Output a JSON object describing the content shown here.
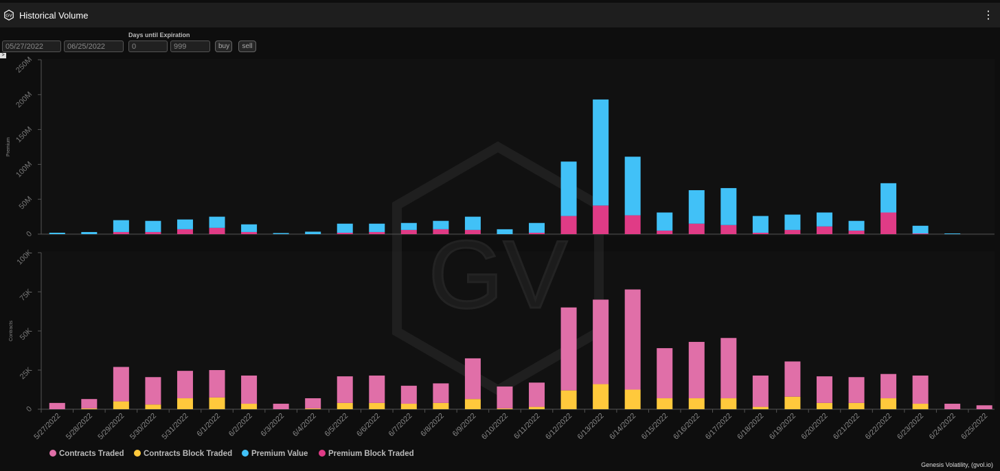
{
  "header": {
    "title": "Historical Volume",
    "logo_text": "GV",
    "menu_icon": "more-dots-icon"
  },
  "controls": {
    "start_date": "05/27/2022",
    "end_date": "06/25/2022",
    "days_label": "Days until Expiration",
    "days_min": "0",
    "days_max": "999",
    "buy_label": "buy",
    "sell_label": "sell",
    "expand_glyph": ">"
  },
  "watermark": {
    "text": "GV"
  },
  "credit": "Genesis Volatility, (gvol.io)",
  "colors": {
    "contracts_traded": "#e06fa8",
    "contracts_block": "#ffc93c",
    "premium_value": "#41c1f7",
    "premium_block": "#e03b86"
  },
  "chart_data": [
    {
      "type": "bar",
      "stacked": true,
      "ylabel": "Premium",
      "ylim": [
        0,
        250000000
      ],
      "yticks": [
        0,
        50000000,
        100000000,
        150000000,
        200000000,
        250000000
      ],
      "ytick_labels": [
        "0",
        "50M",
        "100M",
        "150M",
        "200M",
        "250M"
      ],
      "categories": [
        "5/27/2022",
        "5/28/2022",
        "5/29/2022",
        "5/30/2022",
        "5/31/2022",
        "6/1/2022",
        "6/2/2022",
        "6/3/2022",
        "6/4/2022",
        "6/5/2022",
        "6/6/2022",
        "6/7/2022",
        "6/8/2022",
        "6/9/2022",
        "6/10/2022",
        "6/11/2022",
        "6/12/2022",
        "6/13/2022",
        "6/14/2022",
        "6/15/2022",
        "6/16/2022",
        "6/17/2022",
        "6/18/2022",
        "6/19/2022",
        "6/20/2022",
        "6/21/2022",
        "6/22/2022",
        "6/23/2022",
        "6/24/2022",
        "6/25/2022"
      ],
      "series": [
        {
          "name": "Premium Block Traded",
          "color": "#e03b86",
          "values": [
            0,
            0,
            3000000,
            3000000,
            7000000,
            9000000,
            3000000,
            0,
            0,
            2000000,
            3000000,
            6000000,
            7000000,
            6000000,
            0,
            2000000,
            26000000,
            41000000,
            27000000,
            5000000,
            15000000,
            13000000,
            2000000,
            6000000,
            11000000,
            5000000,
            31000000,
            1000000,
            0,
            0
          ]
        },
        {
          "name": "Premium Value",
          "color": "#41c1f7",
          "values": [
            2000000,
            3000000,
            17000000,
            16000000,
            14000000,
            16000000,
            11000000,
            1500000,
            3500000,
            13000000,
            12000000,
            10000000,
            12000000,
            19000000,
            7000000,
            14000000,
            78000000,
            152000000,
            84000000,
            26000000,
            48000000,
            53000000,
            24000000,
            22000000,
            20000000,
            14000000,
            42000000,
            11000000,
            1000000,
            0
          ]
        }
      ]
    },
    {
      "type": "bar",
      "stacked": true,
      "ylabel": "Contracts",
      "ylim": [
        0,
        100000
      ],
      "yticks": [
        0,
        25000,
        50000,
        75000,
        100000
      ],
      "ytick_labels": [
        "0",
        "25K",
        "50K",
        "75K",
        "100K"
      ],
      "categories": [
        "5/27/2022",
        "5/28/2022",
        "5/29/2022",
        "5/30/2022",
        "5/31/2022",
        "6/1/2022",
        "6/2/2022",
        "6/3/2022",
        "6/4/2022",
        "6/5/2022",
        "6/6/2022",
        "6/7/2022",
        "6/8/2022",
        "6/9/2022",
        "6/10/2022",
        "6/11/2022",
        "6/12/2022",
        "6/13/2022",
        "6/14/2022",
        "6/15/2022",
        "6/16/2022",
        "6/17/2022",
        "6/18/2022",
        "6/19/2022",
        "6/20/2022",
        "6/21/2022",
        "6/22/2022",
        "6/23/2022",
        "6/24/2022",
        "6/25/2022"
      ],
      "series": [
        {
          "name": "Contracts Block Traded",
          "color": "#ffc93c",
          "values": [
            0,
            500,
            5000,
            3000,
            7000,
            7500,
            3500,
            0,
            500,
            4000,
            4000,
            3500,
            4000,
            6500,
            500,
            1500,
            12000,
            16000,
            12500,
            7000,
            7000,
            7000,
            1500,
            8000,
            4000,
            4000,
            7000,
            3500,
            0,
            0
          ]
        },
        {
          "name": "Contracts Traded",
          "color": "#e06fa8",
          "values": [
            4000,
            6000,
            22000,
            17500,
            17500,
            17500,
            18000,
            3500,
            6500,
            17000,
            17500,
            11500,
            12500,
            26000,
            14000,
            15500,
            53000,
            54000,
            64000,
            32000,
            36000,
            38500,
            20000,
            22500,
            17000,
            16500,
            15500,
            18000,
            3500,
            2500
          ]
        }
      ]
    }
  ],
  "legend": [
    {
      "name": "Contracts Traded",
      "color": "#e06fa8"
    },
    {
      "name": "Contracts Block Traded",
      "color": "#ffc93c"
    },
    {
      "name": "Premium Value",
      "color": "#41c1f7"
    },
    {
      "name": "Premium Block Traded",
      "color": "#e03b86"
    }
  ]
}
